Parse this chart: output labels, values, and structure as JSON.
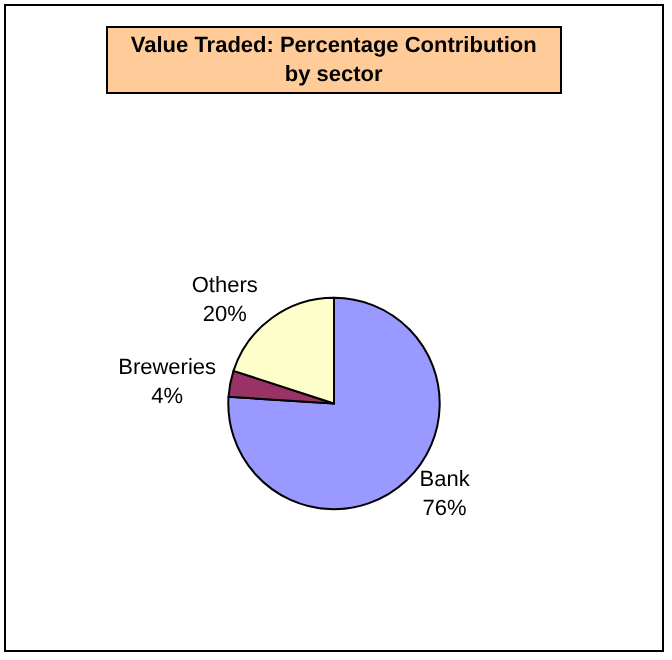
{
  "chart_data": {
    "type": "pie",
    "title": "Value Traded: Percentage Contribution by sector",
    "categories": [
      "Bank",
      "Breweries",
      "Others"
    ],
    "values": [
      76,
      4,
      20
    ],
    "colors": [
      "#9999ff",
      "#993366",
      "#ffffcc"
    ],
    "value_labels": [
      "76%",
      "4%",
      "20%"
    ],
    "legend": false
  }
}
